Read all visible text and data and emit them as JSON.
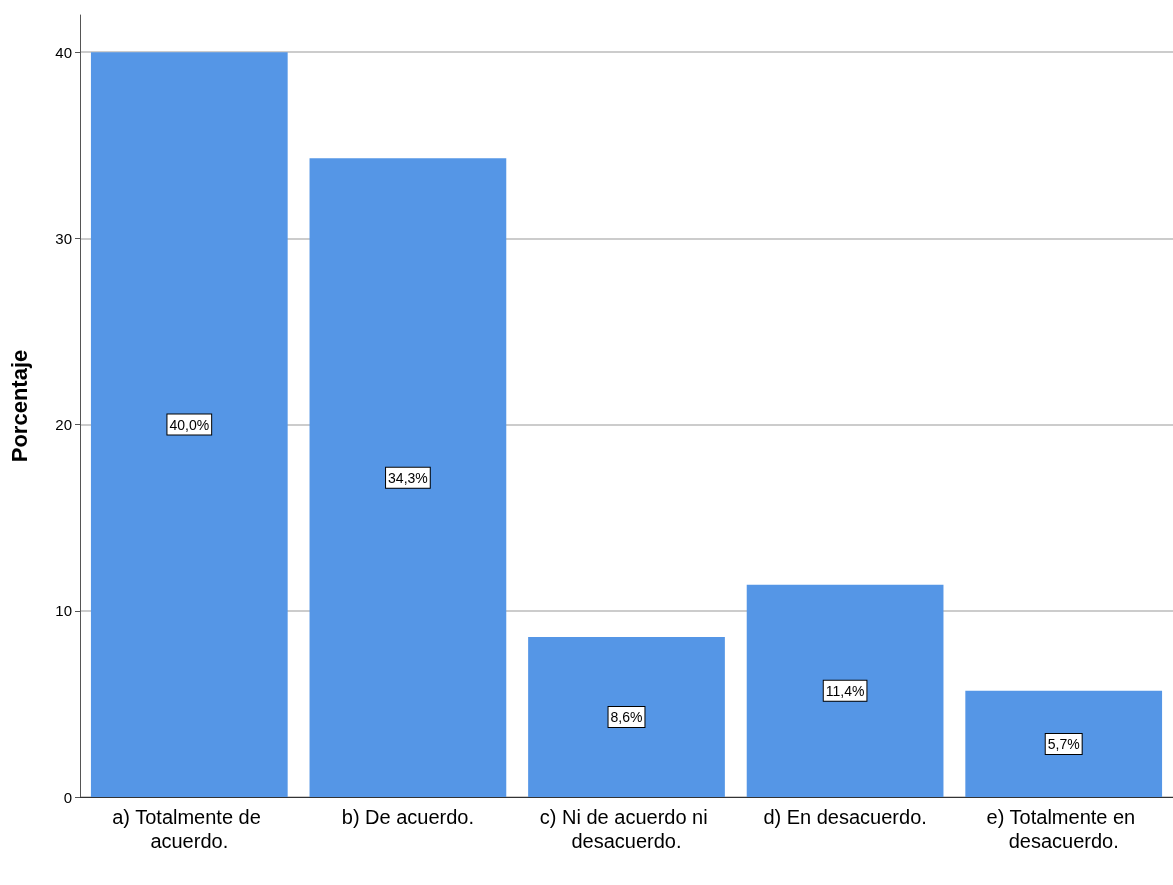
{
  "chart_data": {
    "type": "bar",
    "ylabel": "Porcentaje",
    "categories": [
      "a) Totalmente de acuerdo.",
      "b) De acuerdo.",
      "c) Ni de acuerdo ni desacuerdo.",
      "d) En desacuerdo.",
      "e) Totalmente en desacuerdo."
    ],
    "values": [
      40.0,
      34.3,
      8.6,
      11.4,
      5.7
    ],
    "value_labels": [
      "40,0%",
      "34,3%",
      "8,6%",
      "11,4%",
      "5,7%"
    ],
    "color": "#5596e6",
    "ylim": [
      0,
      42
    ],
    "yticks": [
      0,
      10,
      20,
      30,
      40
    ],
    "grid": "y"
  }
}
